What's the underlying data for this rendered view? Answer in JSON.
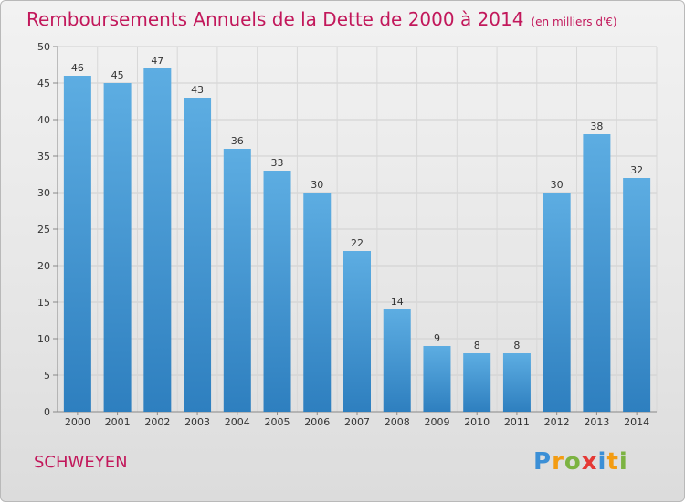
{
  "title": "Remboursements Annuels de la Dette de 2000 à 2014",
  "subtitle": "(en milliers d'€)",
  "commune": "SCHWEYEN",
  "logo": {
    "letters": [
      "P",
      "r",
      "o",
      "x",
      "i",
      "t",
      "i"
    ]
  },
  "colors": {
    "title": "#c2185b",
    "bar_top": "#5dade2",
    "bar_bottom": "#2e7fbf"
  },
  "chart_data": {
    "type": "bar",
    "categories": [
      "2000",
      "2001",
      "2002",
      "2003",
      "2004",
      "2005",
      "2006",
      "2007",
      "2008",
      "2009",
      "2010",
      "2011",
      "2012",
      "2013",
      "2014"
    ],
    "values": [
      46,
      45,
      47,
      43,
      36,
      33,
      30,
      22,
      14,
      9,
      8,
      8,
      30,
      38,
      32
    ],
    "yticks": [
      0,
      5,
      10,
      15,
      20,
      25,
      30,
      35,
      40,
      45,
      50
    ],
    "ylim": [
      0,
      50
    ],
    "grid": true
  }
}
